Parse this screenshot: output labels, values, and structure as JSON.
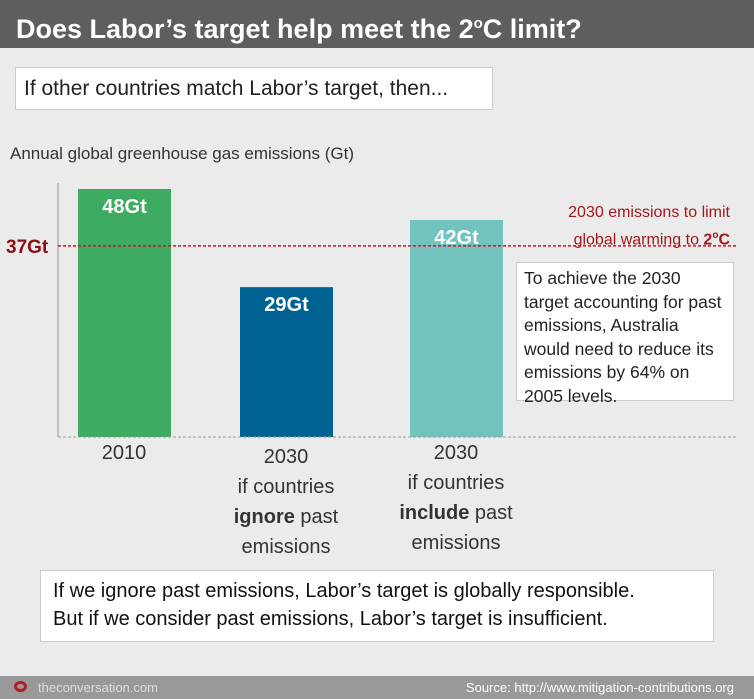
{
  "header": {
    "title": "Does Labor’s target help meet the 2",
    "title_sup": "o",
    "title_end": "C limit?"
  },
  "subtitle": "If other countries match Labor’s target, then...",
  "chart_data": {
    "type": "bar",
    "ylabel": "Annual global greenhouse gas emissions (Gt)",
    "ylim": [
      0,
      48
    ],
    "grid": false,
    "categories": [
      {
        "line1": "2010",
        "line2": "",
        "bold": "",
        "line3_rest": "",
        "line4": ""
      },
      {
        "line1": "2030",
        "line2": "if countries",
        "bold": "ignore",
        "line3_rest": " past",
        "line4": "emissions"
      },
      {
        "line1": "2030",
        "line2": "if countries",
        "bold": "include",
        "line3_rest": " past",
        "line4": "emissions"
      }
    ],
    "values": [
      48,
      29,
      42
    ],
    "value_labels": [
      "48Gt",
      "29Gt",
      "42Gt"
    ],
    "colors": [
      "#3dab62",
      "#006292",
      "#72c3bd"
    ],
    "reference_line": {
      "value": 37,
      "label": "37Gt",
      "text1": "2030 emissions to limit",
      "text2": "global warming to ",
      "text2_bold": "2",
      "text2_sup": "o",
      "text2_end": "C",
      "color": "#d7141a"
    }
  },
  "note": "To achieve the 2030 target accounting for past emissions, Australia would need to reduce its emissions by 64% on 2005 levels.",
  "conclusion": {
    "line1": "If we ignore past emissions, Labor’s target is globally responsible.",
    "line2": "But if we consider past emissions, Labor’s target is insufficient."
  },
  "footer": {
    "brand": "theconversation.com",
    "source": "Source: http://www.mitigation-contributions.org"
  }
}
